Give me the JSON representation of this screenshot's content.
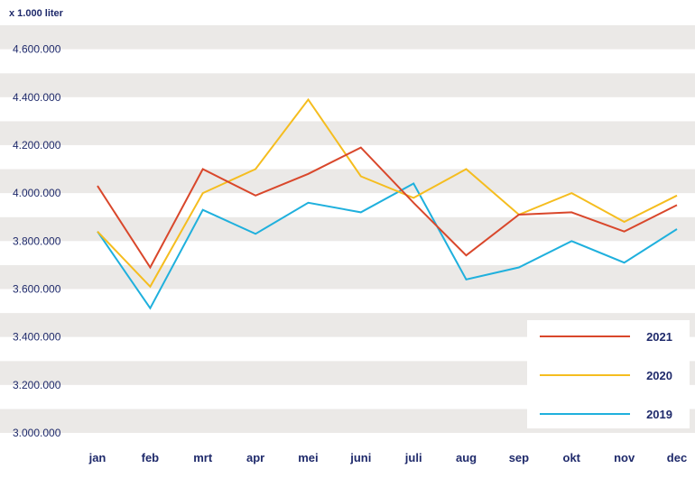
{
  "chart_data": {
    "type": "line",
    "unit_label": "x 1.000 liter",
    "categories": [
      "jan",
      "feb",
      "mrt",
      "apr",
      "mei",
      "juni",
      "juli",
      "aug",
      "sep",
      "okt",
      "nov",
      "dec"
    ],
    "ylim": [
      3000000,
      4700000
    ],
    "y_ticks": [
      "3.000.000",
      "3.200.000",
      "3.400.000",
      "3.600.000",
      "3.800.000",
      "4.000.000",
      "4.200.000",
      "4.400.000",
      "4.600.000"
    ],
    "grid": "alternating horizontal bands",
    "legend_position": "bottom-right",
    "series": [
      {
        "name": "2021",
        "color": "#d9472b",
        "values": [
          4030000,
          3690000,
          4100000,
          3990000,
          4080000,
          4190000,
          3960000,
          3740000,
          3910000,
          3920000,
          3840000,
          3950000
        ]
      },
      {
        "name": "2020",
        "color": "#f5bd1f",
        "values": [
          3840000,
          3610000,
          4000000,
          4100000,
          4390000,
          4070000,
          3980000,
          4100000,
          3910000,
          4000000,
          3880000,
          3990000
        ]
      },
      {
        "name": "2019",
        "color": "#1fb0dd",
        "values": [
          3840000,
          3520000,
          3930000,
          3830000,
          3960000,
          3920000,
          4040000,
          3640000,
          3690000,
          3800000,
          3710000,
          3850000
        ]
      }
    ]
  }
}
